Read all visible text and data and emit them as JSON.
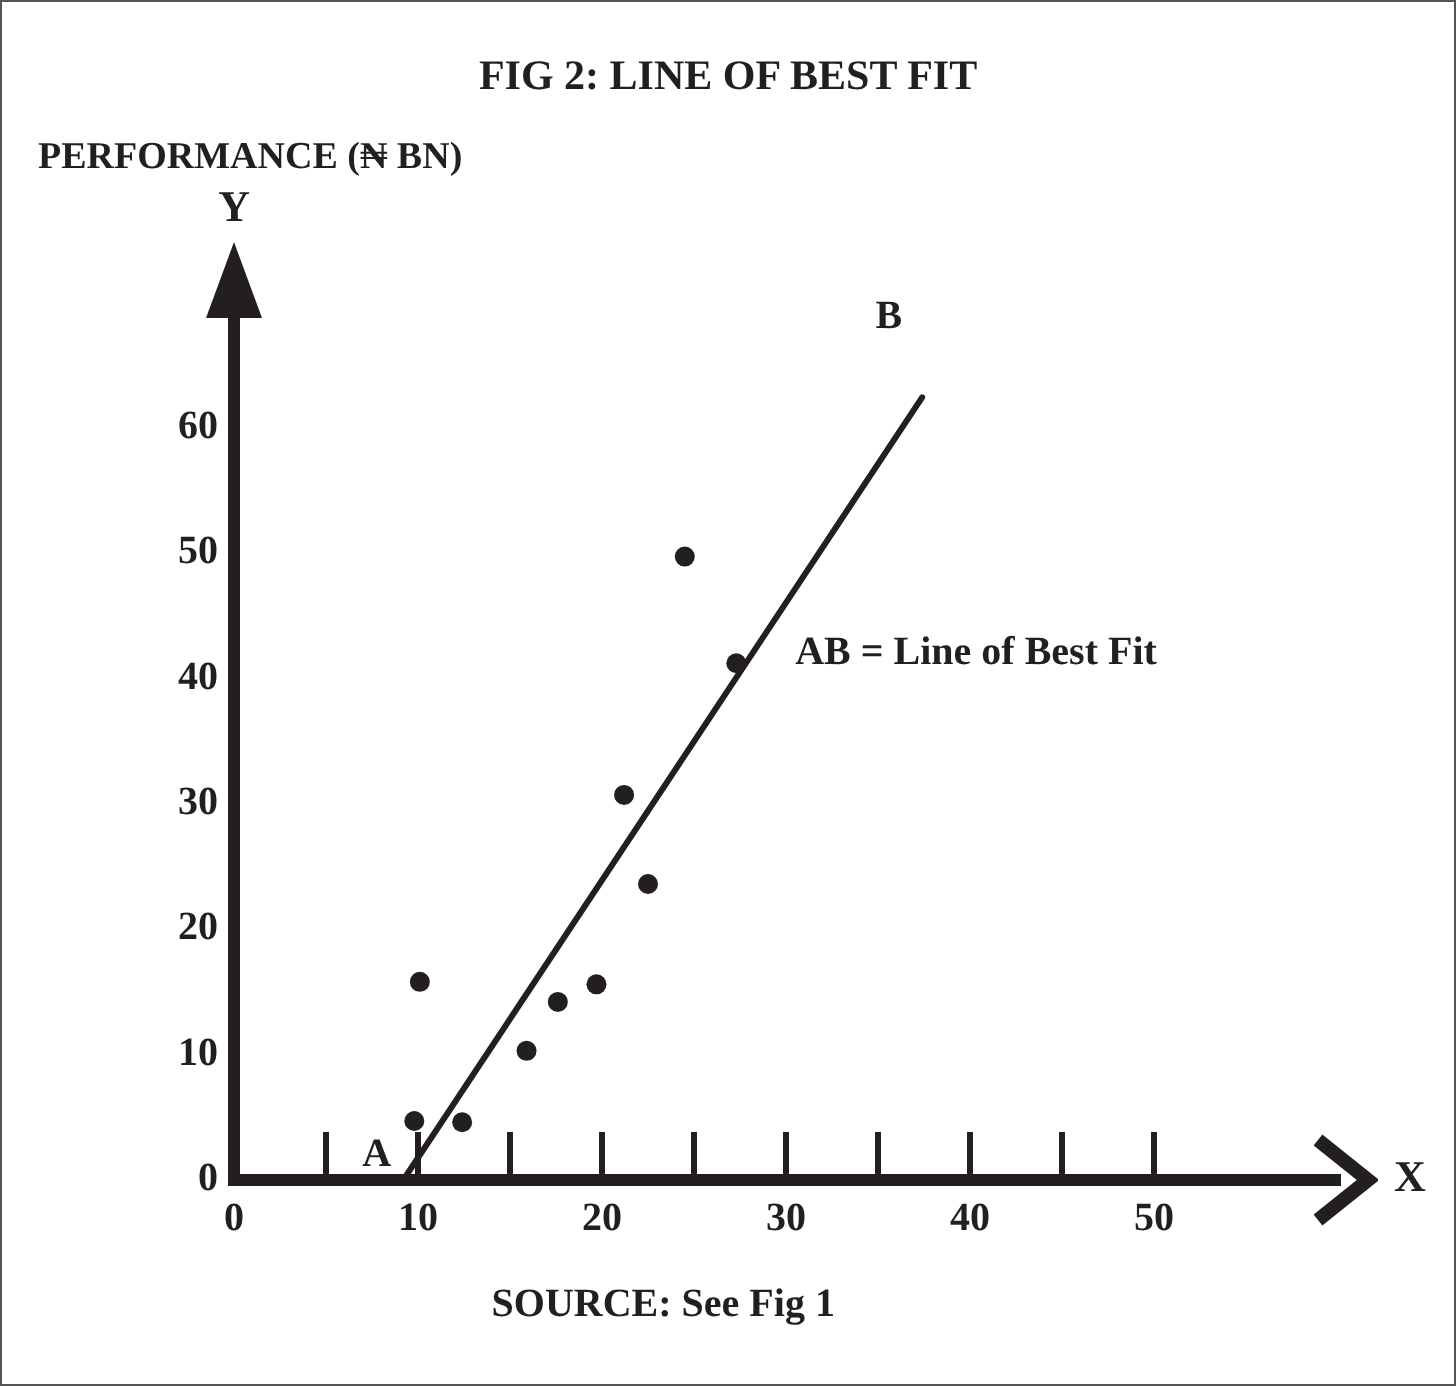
{
  "chart_data": {
    "type": "scatter",
    "title": "FIG 2: LINE OF BEST FIT",
    "subtitle": "PERFORMANCE (₦ BN)",
    "xlabel": "X",
    "ylabel": "Y",
    "xlim": [
      0,
      60
    ],
    "ylim": [
      0,
      70
    ],
    "xticks": [
      0,
      {
        "value": 5,
        "label": null
      },
      10,
      {
        "value": 15,
        "label": null
      },
      20,
      {
        "value": 25,
        "label": null
      },
      30,
      {
        "value": 35,
        "label": null
      },
      40,
      {
        "value": 45,
        "label": null
      },
      50
    ],
    "yticks": [
      0,
      10,
      20,
      30,
      40,
      50,
      60
    ],
    "grid": "x",
    "series": [
      {
        "color": "#231f20",
        "marker": "circle",
        "x": [
          9.8,
          10.1,
          12.4,
          15.9,
          17.6,
          19.7,
          21.2,
          22.5,
          24.5,
          27.3
        ],
        "values": [
          4.7,
          15.8,
          4.6,
          10.3,
          14.2,
          15.6,
          30.7,
          23.6,
          49.7,
          41.2
        ]
      },
      {
        "type": "line",
        "color": "#231f20",
        "x": [
          9.2,
          37.4
        ],
        "values": [
          0,
          62.4
        ]
      }
    ],
    "annotations": [
      {
        "text": "A",
        "x": 9.2,
        "y": 0
      },
      {
        "text": "B",
        "x": 37.4,
        "y": 62.4
      },
      "AB = Line of Best Fit",
      "SOURCE: See Fig 1"
    ]
  }
}
